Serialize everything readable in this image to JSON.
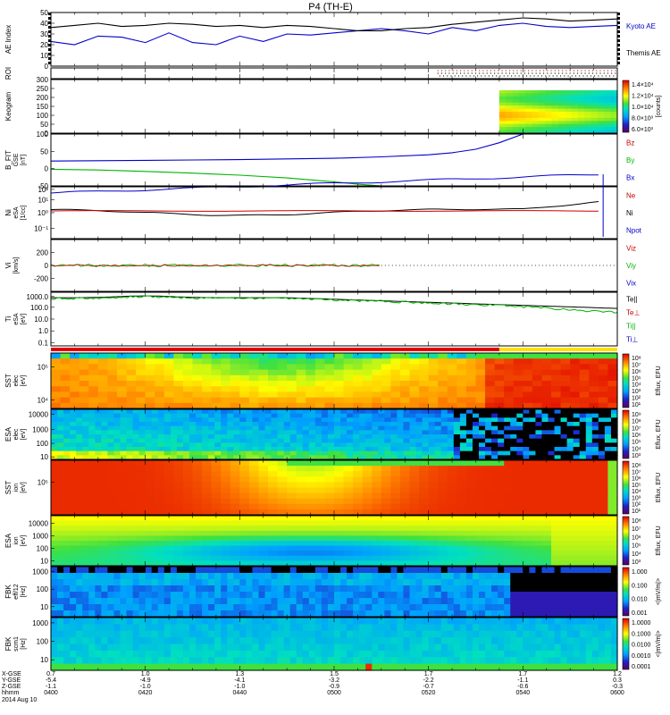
{
  "title": "P4 (TH-E)",
  "date_label": "2014 Aug 10",
  "chart_data": [
    {
      "type": "line",
      "ylabel": "AE Index",
      "ylim": [
        0,
        50
      ],
      "yticks": [
        "0",
        "10",
        "20",
        "30",
        "40",
        "50"
      ],
      "legend": [
        "Kyoto AE",
        "Themis AE"
      ],
      "legend_colors": [
        "#0000c8",
        "#000000"
      ],
      "series": [
        {
          "name": "Kyoto AE",
          "x_min": [
            0,
            5,
            10,
            15,
            20,
            25,
            30,
            35,
            40,
            45,
            50,
            55,
            60,
            65,
            70,
            75,
            80,
            85,
            90,
            95,
            100,
            105,
            110,
            115,
            120
          ],
          "values": [
            23,
            20,
            28,
            27,
            22,
            31,
            22,
            20,
            28,
            23,
            30,
            29,
            31,
            33,
            35,
            33,
            30,
            36,
            33,
            38,
            40,
            37,
            36,
            37,
            38
          ]
        },
        {
          "name": "Themis AE",
          "x_min": [
            0,
            5,
            10,
            15,
            20,
            25,
            30,
            35,
            40,
            45,
            50,
            55,
            60,
            65,
            70,
            75,
            80,
            85,
            90,
            95,
            100,
            105,
            110,
            115,
            120
          ],
          "values": [
            36,
            38,
            40,
            37,
            38,
            40,
            39,
            37,
            38,
            36,
            38,
            37,
            35,
            33,
            33,
            35,
            36,
            39,
            41,
            43,
            45,
            44,
            42,
            43,
            44
          ]
        }
      ]
    },
    {
      "type": "other",
      "ylabel": "ROI"
    },
    {
      "type": "heatmap",
      "ylabel": "Keogram",
      "ylim": [
        0,
        300
      ],
      "yticks": [
        "0",
        "50",
        "100",
        "150",
        "200",
        "250",
        "300"
      ],
      "colorbar_ticks": [
        "1.4×10⁴",
        "1.2×10⁴",
        "1.0×10⁴",
        "8.0×10³",
        "6.0×10³"
      ],
      "colorbar_label": "[counts]",
      "x_range_min": [
        95,
        120
      ]
    },
    {
      "type": "line",
      "ylabel": "B_FIT",
      "ylabel_sub": "GSE",
      "yunit": "[nT]",
      "ylim": [
        -50,
        100
      ],
      "yticks": [
        "-50",
        "0",
        "50",
        "100"
      ],
      "legend": [
        "Bz",
        "By",
        "Bx"
      ],
      "legend_colors": [
        "#c80000",
        "#00b400",
        "#0000c8"
      ],
      "series": [
        {
          "name": "Bx",
          "x_min": [
            0,
            10,
            20,
            30,
            40,
            50,
            60,
            70,
            80,
            85,
            90,
            95,
            100
          ],
          "values": [
            22,
            23,
            24,
            25,
            26,
            28,
            30,
            34,
            40,
            46,
            56,
            75,
            100
          ]
        },
        {
          "name": "By",
          "x_min": [
            0,
            10,
            20,
            30,
            40,
            50,
            60,
            65,
            70
          ],
          "values": [
            -2,
            -4,
            -8,
            -13,
            -19,
            -27,
            -38,
            -45,
            -50
          ]
        }
      ]
    },
    {
      "type": "line",
      "ylabel": "Ni",
      "ylabel_sub": "eSA",
      "yunit": "[1/cc]",
      "yticks": [
        "10⁻¹",
        "10⁰",
        "10¹",
        "10²"
      ],
      "legend": [
        "Ne",
        "Ni",
        "Npot"
      ],
      "legend_colors": [
        "#c80000",
        "#000000",
        "#0000c8"
      ]
    },
    {
      "type": "line",
      "ylabel": "Vi",
      "yunit": "[km/s]",
      "ylim": [
        -400,
        400
      ],
      "yticks": [
        "-200",
        "0",
        "200"
      ],
      "legend": [
        "Viz",
        "Viy",
        "Vix"
      ],
      "legend_colors": [
        "#c80000",
        "#00b400",
        "#0000c8"
      ]
    },
    {
      "type": "line",
      "ylabel": "Ti",
      "ylabel_sub": "eSA",
      "yunit": "[eV]",
      "yticks": [
        "0.1",
        "1.0",
        "10.0",
        "100.0",
        "1000.0"
      ],
      "legend": [
        "Te||",
        "Te⊥",
        "Ti||",
        "Ti⊥"
      ],
      "legend_colors": [
        "#000000",
        "#c80000",
        "#00b400",
        "#0000c8"
      ]
    },
    {
      "type": "heatmap",
      "ylabel": "SST",
      "ylabel_sub": "elec",
      "yunit": "[eV]",
      "yticks": [
        "10⁴",
        "10⁵"
      ],
      "colorbar_ticks": [
        "10⁸",
        "10⁷",
        "10⁶",
        "10⁵",
        "10⁴",
        "10³",
        "10²",
        "10¹"
      ],
      "colorbar_label": "Eflux, EFU"
    },
    {
      "type": "heatmap",
      "ylabel": "ESA",
      "ylabel_sub": "elec",
      "yunit": "[eV]",
      "yticks": [
        "10",
        "100",
        "1000",
        "10000"
      ],
      "colorbar_ticks": [
        "10⁹",
        "10⁸",
        "10⁷",
        "10⁶",
        "10⁵",
        "10⁴",
        "10³"
      ],
      "colorbar_label": "Eflux, EFU"
    },
    {
      "type": "heatmap",
      "ylabel": "SST",
      "ylabel_sub": "ion",
      "yunit": "[eV]",
      "yticks": [
        "10⁵"
      ],
      "colorbar_ticks": [
        "10⁸",
        "10⁷",
        "10⁶",
        "10⁵",
        "10⁴",
        "10³",
        "10²",
        "10¹"
      ],
      "colorbar_label": "Eflux, EFU"
    },
    {
      "type": "heatmap",
      "ylabel": "ESA",
      "ylabel_sub": "ion",
      "yunit": "[eV]",
      "yticks": [
        "10",
        "100",
        "1000",
        "10000"
      ],
      "colorbar_ticks": [
        "10⁸",
        "10⁷",
        "10⁶",
        "10⁵",
        "10⁴",
        "10³"
      ],
      "colorbar_label": "Eflux, EFU"
    },
    {
      "type": "heatmap",
      "ylabel": "FBK",
      "ylabel_sub": "eff/12",
      "yunit": "[Hz]",
      "yticks": [
        "10",
        "100",
        "1000"
      ],
      "colorbar_ticks": [
        "1.000",
        "0.100",
        "0.010",
        "0.001"
      ],
      "colorbar_label": "<|mV/m|>"
    },
    {
      "type": "heatmap",
      "ylabel": "FBK",
      "ylabel_sub": "scm1",
      "yunit": "[Hz]",
      "yticks": [
        "10",
        "100",
        "1000"
      ],
      "colorbar_ticks": [
        "1.0000",
        "0.1000",
        "0.0100",
        "0.0010",
        "0.0001"
      ],
      "colorbar_label": "<|mV/m|>"
    }
  ],
  "x_axis": {
    "row_labels": [
      "X-GSE",
      "Y-GSE",
      "Z-GSE",
      "hhmm"
    ],
    "x_min": [
      0,
      20,
      40,
      60,
      80,
      100,
      120
    ],
    "xgse": [
      "0.7",
      "1.0",
      "1.3",
      "1.5",
      "1.7",
      "1.7",
      "1.2"
    ],
    "ygse": [
      "-5.4",
      "-4.9",
      "-4.1",
      "-3.2",
      "-2.2",
      "-1.1",
      "0.3"
    ],
    "zgse": [
      "-1.1",
      "-1.0",
      "-1.0",
      "-0.9",
      "-0.7",
      "-0.6",
      "-0.3"
    ],
    "hhmm": [
      "0400",
      "0420",
      "0440",
      "0500",
      "0520",
      "0540",
      "0600"
    ]
  }
}
